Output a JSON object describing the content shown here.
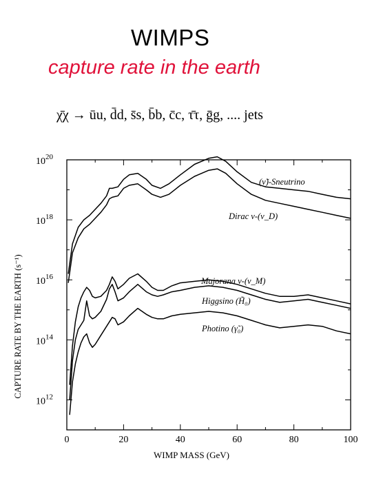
{
  "header": {
    "title": "WIMPS",
    "subtitle": "capture rate in the earth",
    "reaction": "χ̄χ →   ūu, d̄d, s̄s, b̄b, c̄c, τ̄τ, ḡg, .... jets"
  },
  "chart_data": {
    "type": "line",
    "title": "",
    "xlabel": "WIMP MASS (GeV)",
    "ylabel": "CAPTURE RATE BY THE EARTH (s⁻¹)",
    "xlim": [
      0,
      100
    ],
    "ylim_log10": [
      11,
      20
    ],
    "yscale": "log",
    "x_ticks": [
      "0",
      "20",
      "40",
      "60",
      "80",
      "100"
    ],
    "y_ticks": [
      {
        "base": "10",
        "exp": "20",
        "log": 20
      },
      {
        "base": "10",
        "exp": "18",
        "log": 18
      },
      {
        "base": "10",
        "exp": "16",
        "log": 16
      },
      {
        "base": "10",
        "exp": "14",
        "log": 14
      },
      {
        "base": "10",
        "exp": "12",
        "log": 12
      }
    ],
    "annotations": [
      {
        "text": "(ν̃)-Sneutrino",
        "series": "sneutrino"
      },
      {
        "text": "Dirac ν-(ν_D)",
        "series": "dirac"
      },
      {
        "text": "Majorana ν-(ν_M)",
        "series": "majorana"
      },
      {
        "text": "Higgsino (H̃₀)",
        "series": "higgsino"
      },
      {
        "text": "Photino (γ̃₀)",
        "series": "photino"
      }
    ],
    "series": [
      {
        "id": "sneutrino",
        "x": [
          0.5,
          2,
          4,
          6,
          8,
          10,
          12,
          14,
          15,
          16,
          18,
          20,
          22,
          25,
          28,
          30,
          33,
          36,
          40,
          45,
          50,
          53,
          56,
          60,
          65,
          70,
          75,
          80,
          85,
          90,
          95,
          100
        ],
        "y": [
          16.2,
          17.2,
          17.75,
          18.0,
          18.15,
          18.35,
          18.55,
          18.8,
          19.05,
          19.05,
          19.1,
          19.35,
          19.5,
          19.55,
          19.35,
          19.15,
          19.05,
          19.2,
          19.5,
          19.85,
          20.05,
          20.1,
          19.95,
          19.6,
          19.25,
          19.1,
          19.05,
          19.0,
          18.95,
          18.85,
          18.75,
          18.7
        ]
      },
      {
        "id": "dirac",
        "x": [
          0.5,
          2,
          4,
          6,
          8,
          10,
          12,
          14,
          15,
          16,
          18,
          20,
          22,
          25,
          28,
          30,
          33,
          36,
          40,
          45,
          50,
          53,
          56,
          60,
          65,
          70,
          75,
          80,
          85,
          90,
          95,
          100
        ],
        "y": [
          15.9,
          16.9,
          17.4,
          17.7,
          17.85,
          18.05,
          18.25,
          18.5,
          18.7,
          18.75,
          18.8,
          19.05,
          19.15,
          19.2,
          19.0,
          18.85,
          18.75,
          18.85,
          19.15,
          19.45,
          19.65,
          19.7,
          19.55,
          19.2,
          18.85,
          18.65,
          18.55,
          18.45,
          18.35,
          18.25,
          18.15,
          18.05
        ]
      },
      {
        "id": "majorana",
        "x": [
          1,
          2,
          3,
          4,
          5,
          6,
          7,
          8,
          9,
          10,
          12,
          14,
          15,
          16,
          17,
          18,
          20,
          22,
          25,
          28,
          30,
          32,
          34,
          37,
          40,
          45,
          50,
          55,
          60,
          65,
          70,
          75,
          80,
          85,
          90,
          95,
          100
        ],
        "y": [
          12.5,
          13.8,
          14.6,
          15.1,
          15.4,
          15.6,
          15.75,
          15.65,
          15.45,
          15.4,
          15.45,
          15.65,
          15.85,
          16.1,
          15.95,
          15.7,
          15.85,
          16.05,
          16.2,
          15.95,
          15.75,
          15.65,
          15.65,
          15.8,
          15.9,
          15.95,
          16.0,
          15.95,
          15.85,
          15.7,
          15.55,
          15.45,
          15.45,
          15.5,
          15.4,
          15.3,
          15.2
        ]
      },
      {
        "id": "higgsino",
        "x": [
          1,
          2,
          3,
          4,
          5,
          6,
          7,
          8,
          9,
          10,
          12,
          14,
          15,
          16,
          17,
          18,
          20,
          22,
          25,
          28,
          30,
          32,
          34,
          37,
          40,
          45,
          50,
          55,
          60,
          65,
          70,
          75,
          80,
          85,
          90,
          95,
          100
        ],
        "y": [
          12.0,
          13.3,
          14.0,
          14.35,
          14.5,
          14.65,
          15.3,
          14.8,
          14.7,
          14.75,
          14.95,
          15.35,
          15.7,
          15.85,
          15.6,
          15.3,
          15.4,
          15.6,
          15.85,
          15.6,
          15.5,
          15.45,
          15.5,
          15.6,
          15.65,
          15.75,
          15.8,
          15.75,
          15.65,
          15.5,
          15.35,
          15.25,
          15.3,
          15.35,
          15.25,
          15.15,
          15.05
        ]
      },
      {
        "id": "photino",
        "x": [
          1,
          2,
          3,
          4,
          5,
          6,
          7,
          8,
          9,
          10,
          12,
          14,
          15,
          16,
          17,
          18,
          20,
          22,
          25,
          28,
          30,
          32,
          34,
          37,
          40,
          45,
          50,
          55,
          60,
          65,
          70,
          75,
          80,
          85,
          90,
          95,
          100
        ],
        "y": [
          11.5,
          12.6,
          13.2,
          13.6,
          13.9,
          14.1,
          14.2,
          13.9,
          13.75,
          13.85,
          14.15,
          14.45,
          14.6,
          14.75,
          14.7,
          14.5,
          14.6,
          14.8,
          15.05,
          14.85,
          14.75,
          14.7,
          14.7,
          14.8,
          14.85,
          14.9,
          14.95,
          14.9,
          14.8,
          14.65,
          14.5,
          14.4,
          14.45,
          14.5,
          14.45,
          14.3,
          14.2
        ]
      }
    ]
  }
}
